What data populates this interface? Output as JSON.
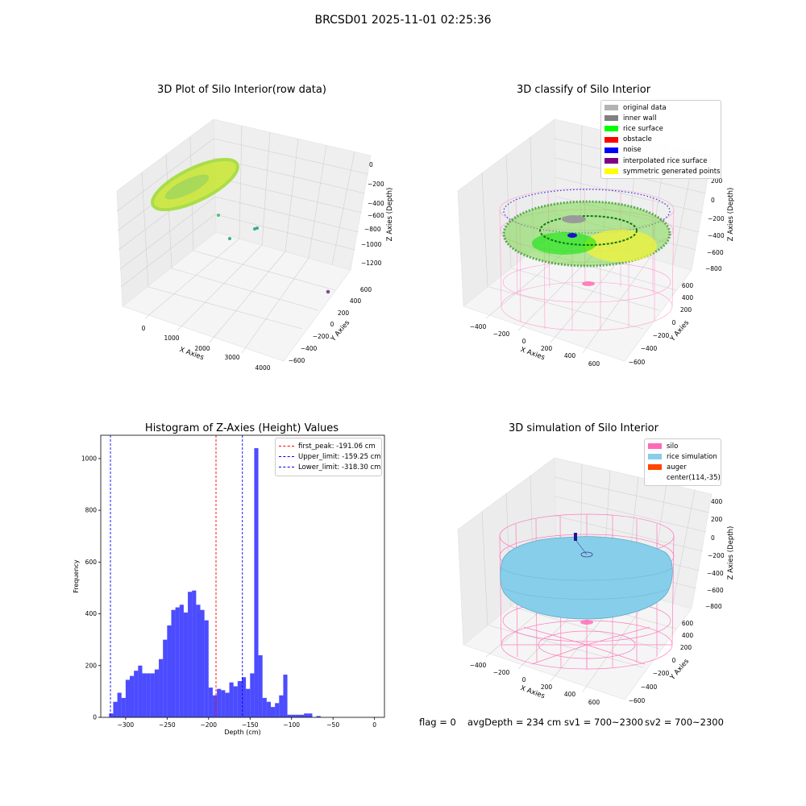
{
  "suptitle": "BRCSD01 2025-11-01 02:25:36",
  "panels": {
    "raw": {
      "title": "3D Plot of Silo Interior(row data)",
      "xlabel": "X Axies",
      "ylabel": "Y Axies",
      "zlabel": "Z Axies (Depth)",
      "xticks": [
        "0",
        "1000",
        "2000",
        "3000",
        "4000"
      ],
      "yticks": [
        "600",
        "400",
        "200",
        "0",
        "−200",
        "−400",
        "−600"
      ],
      "zticks": [
        "0",
        "−200",
        "−400",
        "−600",
        "−800",
        "−1000",
        "−1200"
      ]
    },
    "classify": {
      "title": "3D classify of Silo Interior",
      "xlabel": "X Axies",
      "ylabel": "Y Axies",
      "zlabel": "Z Axies (Depth)",
      "xticks": [
        "−400",
        "−200",
        "0",
        "200",
        "400",
        "600"
      ],
      "yticks": [
        "600",
        "400",
        "200",
        "0",
        "−200",
        "−400",
        "−600"
      ],
      "zticks": [
        "200",
        "0",
        "−200",
        "−400",
        "−600",
        "−800"
      ],
      "legend": [
        {
          "label": "original data",
          "color": "#b3b3b3"
        },
        {
          "label": "inner wall",
          "color": "#808080"
        },
        {
          "label": "rice surface",
          "color": "#00ff00"
        },
        {
          "label": "obstacle",
          "color": "#ff0000"
        },
        {
          "label": "noise",
          "color": "#0000ff"
        },
        {
          "label": "interpolated rice surface",
          "color": "#800080"
        },
        {
          "label": "symmetric generated points",
          "color": "#ffff00"
        }
      ]
    },
    "simulation": {
      "title": "3D simulation of Silo Interior",
      "xlabel": "X Axies",
      "ylabel": "Y Axies",
      "zlabel": "Z Axies (Depth)",
      "xticks": [
        "−400",
        "−200",
        "0",
        "200",
        "400",
        "600"
      ],
      "yticks": [
        "600",
        "400",
        "200",
        "0",
        "−200",
        "−400",
        "−600"
      ],
      "zticks": [
        "400",
        "200",
        "0",
        "−200",
        "−400",
        "−600",
        "−800"
      ],
      "legend": [
        {
          "label": "silo",
          "color": "#ff69b4"
        },
        {
          "label": "rice simulation",
          "color": "#87ceeb"
        },
        {
          "label": "auger",
          "color": "#ff4500"
        },
        {
          "label": "center(114,-35)",
          "color": ""
        }
      ]
    }
  },
  "chart_data": {
    "type": "bar",
    "title": "Histogram of Z-Axies (Height) Values",
    "xlabel": "Depth (cm)",
    "ylabel": "Frequency",
    "xlim": [
      -330,
      12
    ],
    "ylim": [
      0,
      1090
    ],
    "xticks": [
      -300,
      -250,
      -200,
      -150,
      -100,
      -50,
      0
    ],
    "yticks": [
      0,
      200,
      400,
      600,
      800,
      1000
    ],
    "bin_start": -320,
    "bin_width": 5,
    "values": [
      15,
      60,
      95,
      75,
      145,
      160,
      180,
      200,
      170,
      170,
      170,
      185,
      225,
      300,
      355,
      415,
      425,
      435,
      405,
      485,
      490,
      435,
      415,
      375,
      115,
      85,
      110,
      105,
      95,
      135,
      120,
      140,
      155,
      110,
      170,
      1040,
      240,
      75,
      60,
      40,
      55,
      85,
      165,
      10,
      10,
      10,
      10,
      15,
      15,
      0,
      5
    ],
    "bar_color": "#0000ff",
    "lines": [
      {
        "label": "first_peak: -191.06 cm",
        "x": -191.06,
        "color": "#ff0000"
      },
      {
        "label": "Upper_limit: -159.25 cm",
        "x": -159.25,
        "color": "#0000ff"
      },
      {
        "label": "Lower_limit: -318.30 cm",
        "x": -318.3,
        "color": "#0000ff"
      }
    ],
    "legend_position": "top-right"
  },
  "footer": {
    "flag": "flag = 0",
    "avg": "avgDepth = 234 cm",
    "sv1": "sv1 = 700~2300",
    "sv2": "sv2 = 700~2300"
  }
}
